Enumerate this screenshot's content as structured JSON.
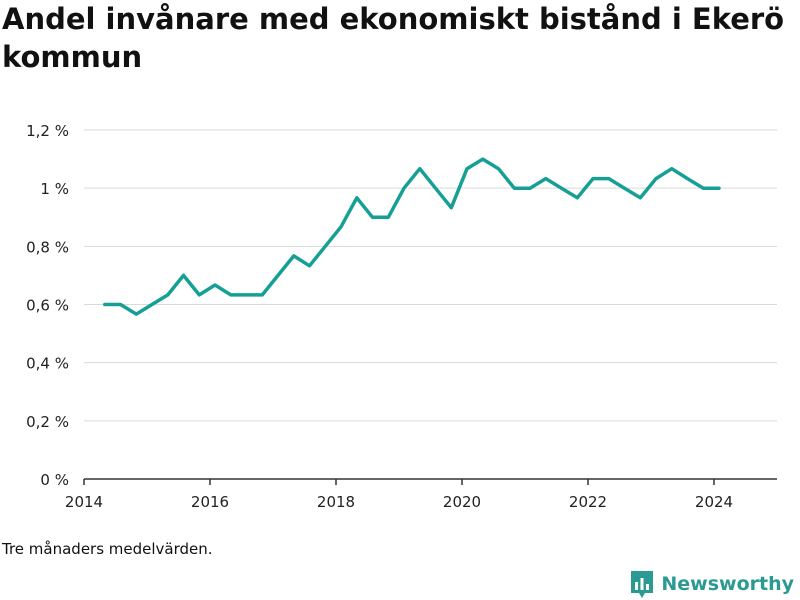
{
  "title": "Andel invånare med ekonomiskt bistånd i Ekerö kommun",
  "note": "Tre månaders medelvärden.",
  "brand": {
    "name": "Newsworthy",
    "icon": "newsworthy-logo-icon",
    "color": "#2a9a92"
  },
  "chart_data": {
    "type": "line",
    "title": "Andel invånare med ekonomiskt bistånd i Ekerö kommun",
    "xlabel": "",
    "ylabel": "",
    "xlim": [
      2014,
      2025
    ],
    "ylim": [
      0,
      1.2
    ],
    "x_ticks": [
      2014,
      2016,
      2018,
      2020,
      2022,
      2024
    ],
    "x_tick_labels": [
      "2014",
      "2016",
      "2018",
      "2020",
      "2022",
      "2024"
    ],
    "y_ticks": [
      0,
      0.2,
      0.4,
      0.6,
      0.8,
      1.0,
      1.2
    ],
    "y_tick_labels": [
      "0 %",
      "0,2 %",
      "0,4 %",
      "0,6 %",
      "0,8 %",
      "1 %",
      "1,2 %"
    ],
    "grid": true,
    "color": "#16a095",
    "series": [
      {
        "name": "",
        "x": [
          2014.33,
          2014.58,
          2014.83,
          2015.08,
          2015.33,
          2015.58,
          2015.83,
          2016.08,
          2016.33,
          2016.58,
          2016.83,
          2017.08,
          2017.33,
          2017.58,
          2017.83,
          2018.08,
          2018.33,
          2018.58,
          2018.83,
          2019.08,
          2019.33,
          2019.58,
          2019.83,
          2020.08,
          2020.33,
          2020.58,
          2020.83,
          2021.08,
          2021.33,
          2021.58,
          2021.83,
          2022.08,
          2022.33,
          2022.58,
          2022.83,
          2023.08,
          2023.33,
          2023.58,
          2023.83,
          2024.08
        ],
        "values": [
          0.6,
          0.6,
          0.567,
          0.6,
          0.633,
          0.7,
          0.633,
          0.667,
          0.633,
          0.633,
          0.633,
          0.7,
          0.767,
          0.733,
          0.8,
          0.867,
          0.967,
          0.9,
          0.9,
          1.0,
          1.067,
          1.0,
          0.933,
          1.067,
          1.1,
          1.067,
          1.0,
          1.0,
          1.033,
          1.0,
          0.967,
          1.033,
          1.033,
          1.0,
          0.967,
          1.033,
          1.067,
          1.033,
          1.0,
          1.0
        ]
      }
    ]
  }
}
